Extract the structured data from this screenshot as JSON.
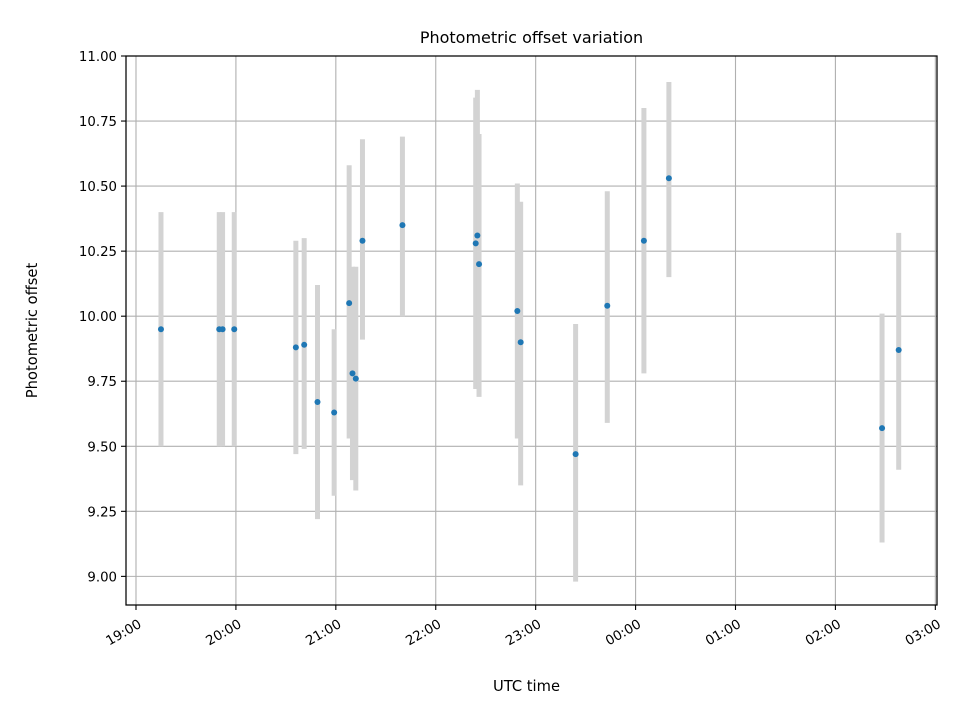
{
  "chart_data": {
    "type": "scatter",
    "title": "Photometric offset variation",
    "xlabel": "UTC time",
    "ylabel": "Photometric offset",
    "x_axis_type": "time",
    "xlim": [
      "18:54",
      "03:01"
    ],
    "ylim": [
      8.89,
      11.0
    ],
    "x_ticks": [
      "19:00",
      "20:00",
      "21:00",
      "22:00",
      "23:00",
      "00:00",
      "01:00",
      "02:00",
      "03:00"
    ],
    "y_ticks": [
      "9.00",
      "9.25",
      "9.50",
      "9.75",
      "10.00",
      "10.25",
      "10.50",
      "10.75",
      "11.00"
    ],
    "grid": true,
    "colors": {
      "point": "#1f77b4",
      "errorbar": "#d3d3d3",
      "grid": "#b0b0b0"
    },
    "points": [
      {
        "x": "19:15",
        "y": 9.95,
        "low": 9.5,
        "high": 10.4
      },
      {
        "x": "19:50",
        "y": 9.95,
        "low": 9.5,
        "high": 10.4
      },
      {
        "x": "19:52",
        "y": 9.95,
        "low": 9.5,
        "high": 10.4
      },
      {
        "x": "19:59",
        "y": 9.95,
        "low": 9.5,
        "high": 10.4
      },
      {
        "x": "20:36",
        "y": 9.88,
        "low": 9.47,
        "high": 10.29
      },
      {
        "x": "20:41",
        "y": 9.89,
        "low": 9.49,
        "high": 10.3
      },
      {
        "x": "20:49",
        "y": 9.67,
        "low": 9.22,
        "high": 10.12
      },
      {
        "x": "20:59",
        "y": 9.63,
        "low": 9.31,
        "high": 9.95
      },
      {
        "x": "21:08",
        "y": 10.05,
        "low": 9.53,
        "high": 10.58
      },
      {
        "x": "21:10",
        "y": 9.78,
        "low": 9.37,
        "high": 10.19
      },
      {
        "x": "21:12",
        "y": 9.76,
        "low": 9.33,
        "high": 10.19
      },
      {
        "x": "21:16",
        "y": 10.29,
        "low": 9.91,
        "high": 10.68
      },
      {
        "x": "21:40",
        "y": 10.35,
        "low": 10.0,
        "high": 10.69
      },
      {
        "x": "22:24",
        "y": 10.28,
        "low": 9.72,
        "high": 10.84
      },
      {
        "x": "22:25",
        "y": 10.31,
        "low": 9.75,
        "high": 10.87
      },
      {
        "x": "22:26",
        "y": 10.2,
        "low": 9.69,
        "high": 10.7
      },
      {
        "x": "22:49",
        "y": 10.02,
        "low": 9.53,
        "high": 10.51
      },
      {
        "x": "22:51",
        "y": 9.9,
        "low": 9.35,
        "high": 10.44
      },
      {
        "x": "23:24",
        "y": 9.47,
        "low": 8.98,
        "high": 9.97
      },
      {
        "x": "23:43",
        "y": 10.04,
        "low": 9.59,
        "high": 10.48
      },
      {
        "x": "00:05",
        "y": 10.29,
        "low": 9.78,
        "high": 10.8
      },
      {
        "x": "00:20",
        "y": 10.53,
        "low": 10.15,
        "high": 10.9
      },
      {
        "x": "02:28",
        "y": 9.57,
        "low": 9.13,
        "high": 10.01
      },
      {
        "x": "02:38",
        "y": 9.87,
        "low": 9.41,
        "high": 10.32
      }
    ]
  }
}
